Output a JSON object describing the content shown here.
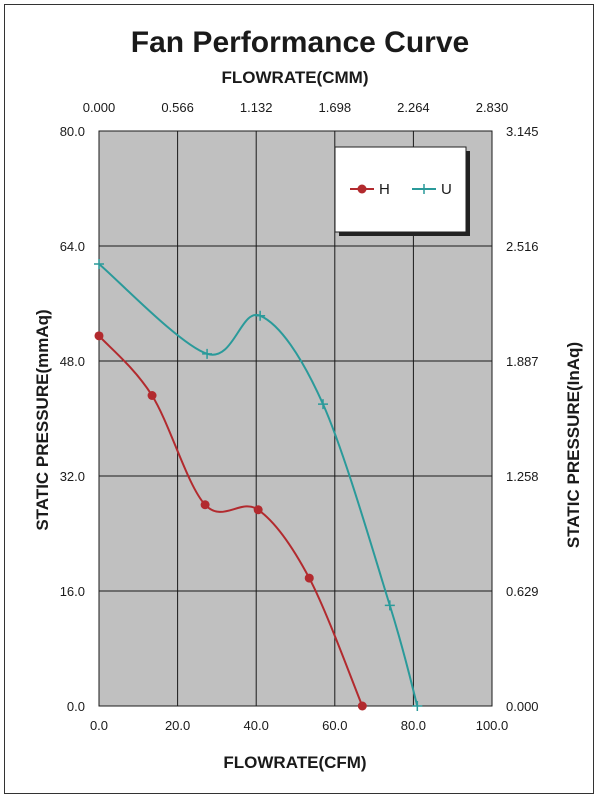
{
  "chart_data": {
    "type": "line",
    "title": "Fan Performance Curve",
    "xlabel": "FLOWRATE(CFM)",
    "x2label": "FLOWRATE(CMM)",
    "ylabel": "STATIC PRESSURE(mmAq)",
    "y2label": "STATIC PRESSURE(InAq)",
    "xlim": [
      0,
      100
    ],
    "ylim": [
      0,
      80
    ],
    "x_ticks": [
      "0.0",
      "20.0",
      "40.0",
      "60.0",
      "80.0",
      "100.0"
    ],
    "x2_ticks": [
      "0.000",
      "0.566",
      "1.132",
      "1.698",
      "2.264",
      "2.830"
    ],
    "y_ticks": [
      "0.0",
      "16.0",
      "32.0",
      "48.0",
      "64.0",
      "80.0"
    ],
    "y2_ticks": [
      "0.000",
      "0.629",
      "1.258",
      "1.887",
      "2.516",
      "3.145"
    ],
    "grid": true,
    "legend_position": "top-right",
    "series": [
      {
        "name": "H",
        "color": "#b22a2e",
        "marker": "circle",
        "points": [
          [
            0,
            51.5
          ],
          [
            13.5,
            43.2
          ],
          [
            27,
            28
          ],
          [
            40.5,
            27.3
          ],
          [
            53.5,
            17.8
          ],
          [
            67,
            0
          ]
        ]
      },
      {
        "name": "U",
        "color": "#2a9a9a",
        "marker": "plus",
        "points": [
          [
            0,
            61.5
          ],
          [
            27.5,
            49
          ],
          [
            41,
            54.3
          ],
          [
            57,
            42
          ],
          [
            74,
            14
          ],
          [
            81,
            0
          ]
        ]
      }
    ]
  },
  "colors": {
    "plot_background": "#c0c0c0",
    "grid": "#1a1a1a"
  }
}
